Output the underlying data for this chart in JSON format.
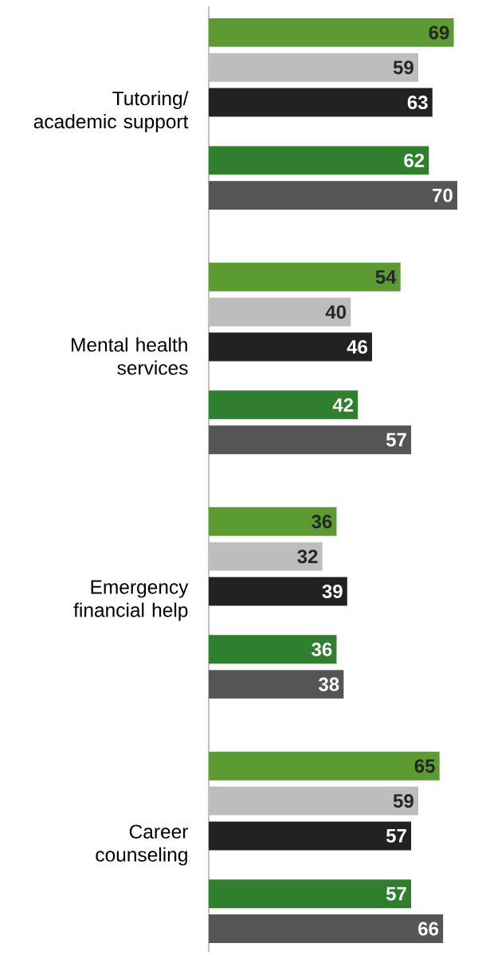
{
  "chart_data": {
    "type": "bar",
    "orientation": "horizontal",
    "data_labels": true,
    "categories": [
      "Tutoring/ academic support",
      "Mental health services",
      "Emergency financial help",
      "Career counseling"
    ],
    "series": [
      {
        "color": "#5b9b32",
        "values": [
          69,
          54,
          36,
          65
        ]
      },
      {
        "color": "#bdbdbd",
        "values": [
          59,
          40,
          32,
          59
        ]
      },
      {
        "color": "#222222",
        "values": [
          63,
          46,
          39,
          57
        ]
      },
      {
        "color": "#2f7f2f",
        "values": [
          62,
          42,
          36,
          57
        ]
      },
      {
        "color": "#555555",
        "values": [
          70,
          57,
          38,
          66
        ]
      }
    ]
  }
}
